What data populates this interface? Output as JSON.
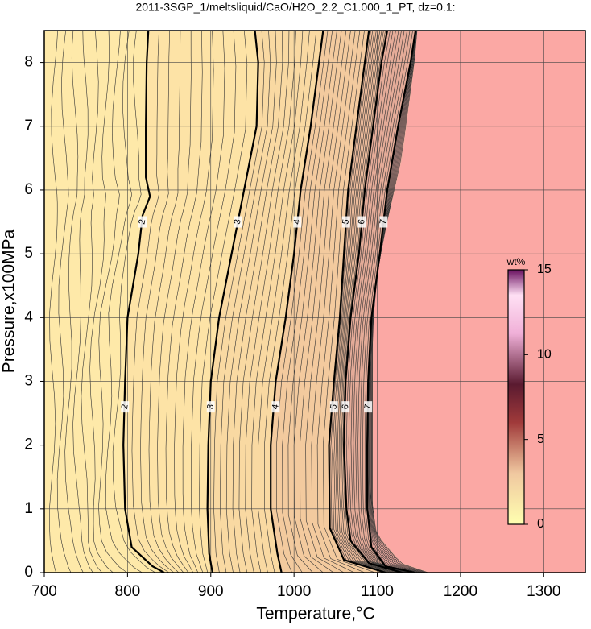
{
  "chart_data": {
    "type": "contour",
    "title": "2011-3SGP_1/meltsliquid/CaO/H2O_2.2_C1.000_1_PT, dz=0.1:",
    "xlabel": "Temperature,°C",
    "ylabel": "Pressure,x100MPa",
    "xlim": [
      700,
      1350
    ],
    "ylim": [
      0,
      8.5
    ],
    "xticks": [
      700,
      800,
      900,
      1000,
      1100,
      1200,
      1300
    ],
    "yticks": [
      0,
      1,
      2,
      3,
      4,
      5,
      6,
      7,
      8
    ],
    "grid": true,
    "background_color": "#fee9a9",
    "region_color": "#fba8a4",
    "contours": [
      {
        "level": 2,
        "x": [
          844,
          830,
          805,
          797,
          795,
          797,
          800,
          813,
          818,
          827,
          822,
          822,
          823,
          825
        ],
        "y": [
          0,
          0.1,
          0.4,
          1,
          2,
          3,
          4,
          5,
          5.6,
          5.9,
          6.2,
          7,
          8,
          8.5
        ]
      },
      {
        "level": 3,
        "x": [
          902,
          898,
          896,
          897,
          900,
          910,
          925,
          940,
          955,
          957,
          953
        ],
        "y": [
          0,
          0.3,
          1,
          2,
          3,
          4,
          5,
          6,
          7,
          8,
          8.5
        ]
      },
      {
        "level": 4,
        "x": [
          985,
          980,
          972,
          972,
          978,
          990,
          1000,
          1008,
          1020,
          1030,
          1035
        ],
        "y": [
          0,
          0.3,
          1,
          2,
          3,
          4,
          5,
          6,
          7,
          8,
          8.5
        ]
      },
      {
        "level": 5,
        "x": [
          1110,
          1060,
          1043,
          1042,
          1048,
          1055,
          1060,
          1065,
          1075,
          1085,
          1090
        ],
        "y": [
          0,
          0.2,
          0.7,
          2,
          3,
          4,
          5,
          6,
          7,
          8,
          8.5
        ]
      },
      {
        "level": 6,
        "x": [
          1130,
          1090,
          1068,
          1063,
          1060,
          1062,
          1068,
          1078,
          1085,
          1095,
          1105,
          1112
        ],
        "y": [
          0,
          0.15,
          0.5,
          1,
          2,
          3,
          4,
          5,
          6,
          7,
          8,
          8.5
        ]
      },
      {
        "level": 7,
        "x": [
          1145,
          1110,
          1093,
          1088,
          1088,
          1089,
          1093,
          1103,
          1112,
          1125,
          1140,
          1146
        ],
        "y": [
          0,
          0.1,
          0.4,
          1,
          2,
          3,
          4,
          5,
          6,
          7,
          8,
          8.5
        ]
      }
    ],
    "region_boundary": {
      "x": [
        1163,
        1130,
        1100,
        1095,
        1095,
        1102,
        1112,
        1130,
        1145,
        1148
      ],
      "y": [
        0,
        0.15,
        0.6,
        1,
        4,
        4.9,
        5.5,
        6.5,
        8,
        8.5
      ]
    },
    "colorbar": {
      "label": "wt%",
      "lim": [
        0,
        15
      ],
      "ticks": [
        0,
        5,
        10,
        15
      ]
    }
  }
}
